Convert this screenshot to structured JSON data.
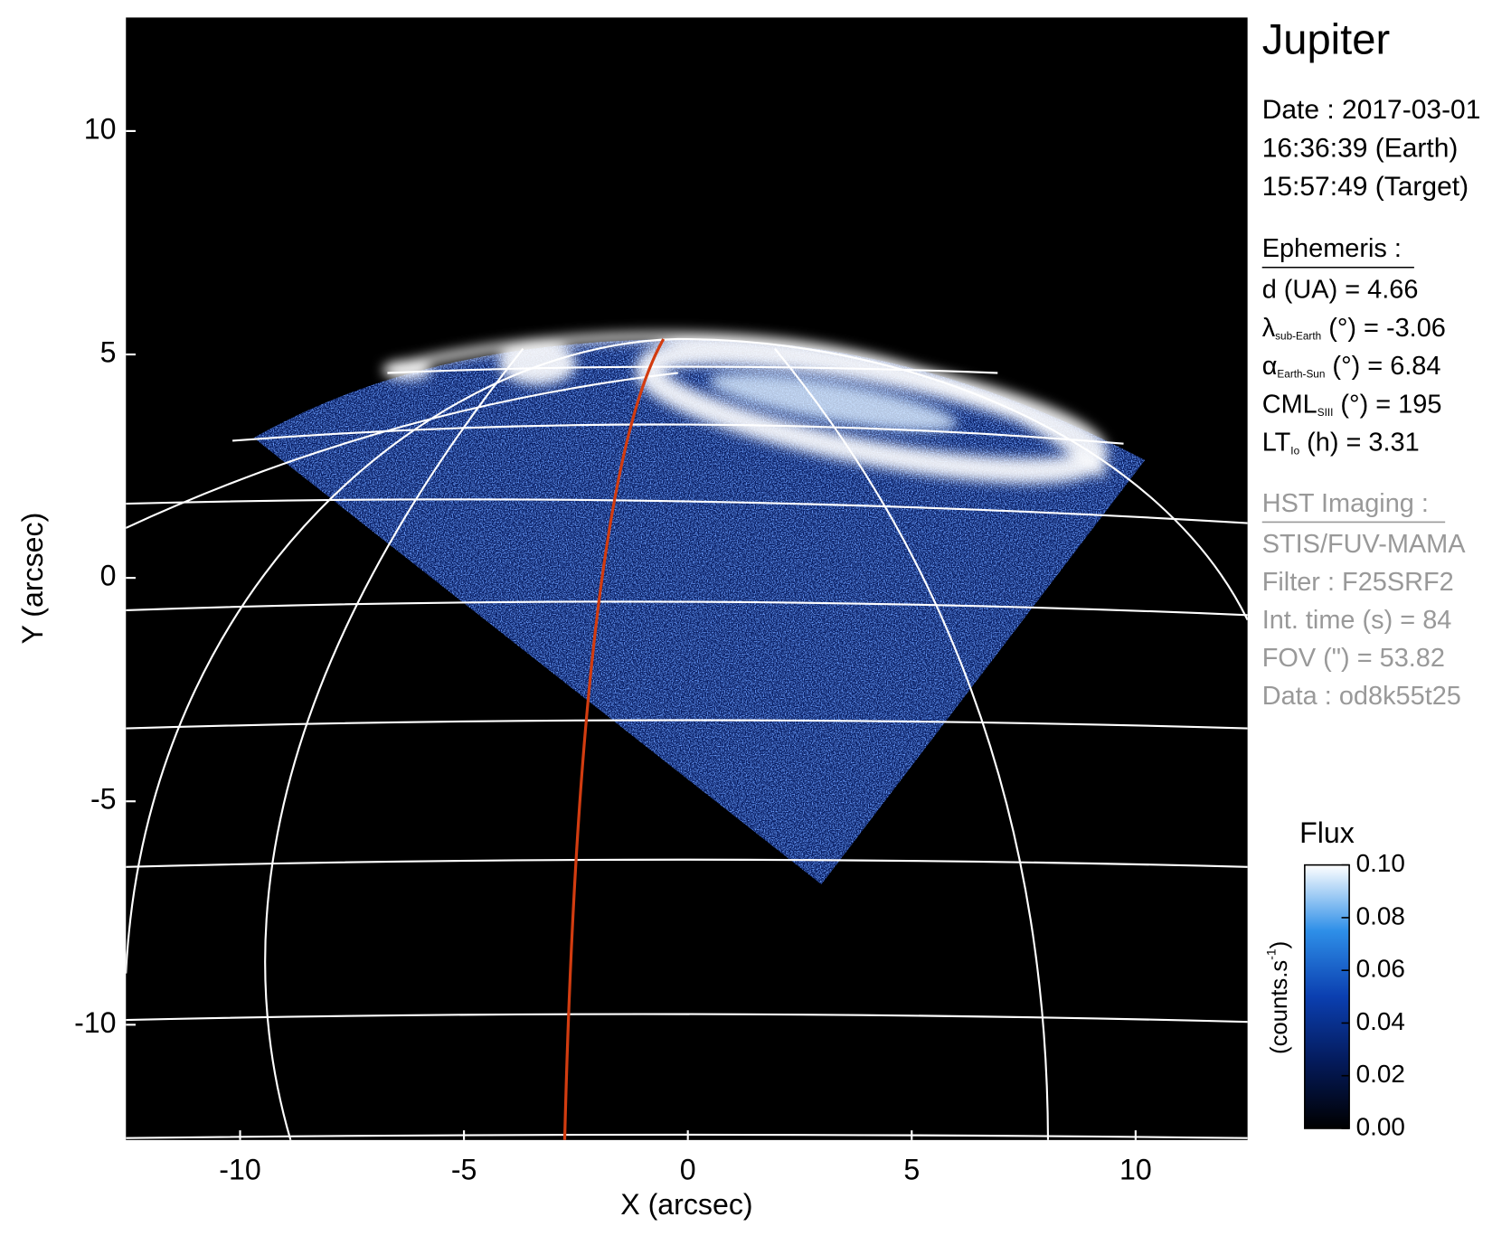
{
  "chart_data": {
    "type": "image",
    "title": "Jupiter",
    "xlabel": "X (arcsec)",
    "ylabel": "Y (arcsec)",
    "xlim": [
      -12.55,
      12.5
    ],
    "ylim": [
      -12.58,
      12.54
    ],
    "xticks": [
      -10,
      -5,
      0,
      5,
      10
    ],
    "yticks": [
      -10,
      -5,
      0,
      5,
      10
    ],
    "date": [
      "Date : 2017-03-01",
      "16:36:39 (Earth)",
      "15:57:49 (Target)"
    ],
    "ephemeris": {
      "heading": "Ephemeris :",
      "lines": [
        {
          "main": "d (UA)    = 4.66"
        },
        {
          "main": "λ",
          "sub": "sub-Earth",
          "rest": " (°) = -3.06"
        },
        {
          "main": "α",
          "sub": "Earth-Sun",
          "rest": " (°) = 6.84"
        },
        {
          "main": "CML",
          "sub": "SIII",
          "rest": " (°) = 195"
        },
        {
          "main": "LT",
          "sub": "Io",
          "rest": " (h) = 3.31"
        }
      ]
    },
    "imaging": {
      "heading": "HST Imaging :",
      "lines": [
        "STIS/FUV-MAMA",
        "Filter : F25SRF2",
        "Int. time (s) = 84",
        "FOV (\") = 53.82",
        "Data : od8k55t25"
      ]
    },
    "colorbar": {
      "title": "Flux",
      "unit": {
        "main": "(counts.s",
        "sup": "-1",
        "close": ")"
      },
      "clim": [
        0,
        0.1
      ],
      "ticks": [
        {
          "value": 0,
          "label": "0.00"
        },
        0.02,
        0.04,
        0.06,
        0.08,
        {
          "value": 0.1,
          "label": "0.10"
        }
      ]
    }
  }
}
